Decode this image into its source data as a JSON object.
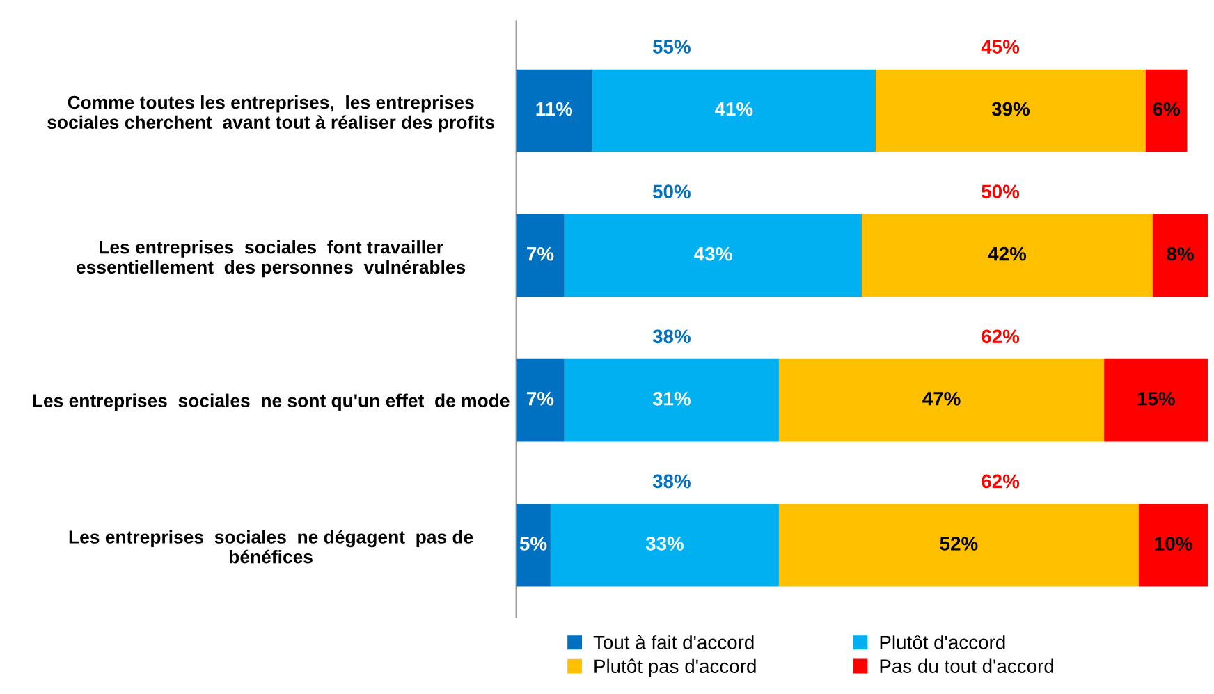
{
  "chart_data": {
    "type": "bar",
    "orientation": "horizontal",
    "stacked": true,
    "categories": [
      "Comme toutes les entreprises,  les entreprises\nsociales cherchent  avant tout à réaliser des profits",
      "Les entreprises  sociales  font travailler\nessentiellement  des personnes  vulnérables",
      "Les entreprises  sociales  ne sont qu'un effet  de mode",
      "Les entreprises  sociales  ne dégagent  pas de\nbénéfices"
    ],
    "series": [
      {
        "name": "Tout à fait d'accord",
        "color": "#0070c0",
        "values": [
          11,
          7,
          7,
          5
        ],
        "value_labels": [
          "11%",
          "7%",
          "7%",
          "5%"
        ]
      },
      {
        "name": "Plutôt d'accord",
        "color": "#00b0f0",
        "values": [
          41,
          43,
          31,
          33
        ],
        "value_labels": [
          "41%",
          "43%",
          "31%",
          "33%"
        ]
      },
      {
        "name": "Plutôt pas d'accord",
        "color": "#ffc000",
        "values": [
          39,
          42,
          47,
          52
        ],
        "value_labels": [
          "39%",
          "42%",
          "47%",
          "52%"
        ]
      },
      {
        "name": "Pas du tout d'accord",
        "color": "#ff0000",
        "values": [
          6,
          8,
          15,
          10
        ],
        "value_labels": [
          "6%",
          "8%",
          "15%",
          "10%"
        ]
      }
    ],
    "tick_labels": "y",
    "legend": "bottom",
    "grid": false,
    "annotations": [
      "55%",
      "45%",
      "50%",
      "50%",
      "38%",
      "62%",
      "38%",
      "62%"
    ]
  }
}
